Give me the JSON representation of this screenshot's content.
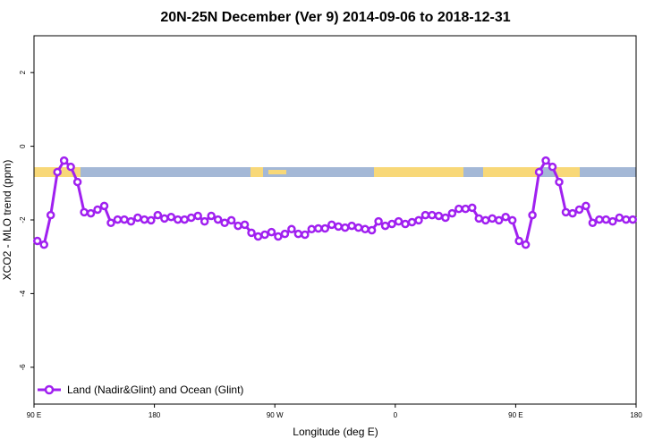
{
  "chart_data": {
    "type": "line",
    "title": "20N-25N December (Ver 9)   2014-09-06 to 2018-12-31",
    "x_label": "Longitude (deg E)",
    "y_label": "XCO2 - MLO trend (ppm)",
    "xlim": [
      90,
      540
    ],
    "ylim": [
      -7,
      3
    ],
    "xticks": [
      {
        "value": 90,
        "label": "90 E"
      },
      180,
      {
        "value": 270,
        "label": "90 W"
      },
      {
        "value": 360,
        "label": "0"
      },
      {
        "value": 450,
        "label": "90 E"
      },
      {
        "value": 540,
        "label": "180"
      }
    ],
    "yticks": [
      2,
      0,
      -2,
      -4,
      -6
    ],
    "legend": "bottom-left",
    "x": [
      92.5,
      97.5,
      102.5,
      107.5,
      112.5,
      117.5,
      122.5,
      127.5,
      132.5,
      137.5,
      142.5,
      147.5,
      152.5,
      157.5,
      162.5,
      167.5,
      172.5,
      177.5,
      182.5,
      187.5,
      192.5,
      197.5,
      202.5,
      207.5,
      212.5,
      217.5,
      222.5,
      227.5,
      232.5,
      237.5,
      242.5,
      247.5,
      252.5,
      257.5,
      262.5,
      267.5,
      272.5,
      277.5,
      282.5,
      287.5,
      292.5,
      297.5,
      302.5,
      307.5,
      312.5,
      317.5,
      322.5,
      327.5,
      332.5,
      337.5,
      342.5,
      347.5,
      352.5,
      357.5,
      362.5,
      367.5,
      372.5,
      377.5,
      382.5,
      387.5,
      392.5,
      397.5,
      402.5,
      407.5,
      412.5,
      417.5,
      422.5,
      427.5,
      432.5,
      437.5,
      442.5,
      447.5,
      452.5,
      457.5,
      462.5,
      467.5,
      472.5,
      477.5,
      482.5,
      487.5,
      492.5,
      497.5,
      502.5,
      507.5,
      512.5,
      517.5,
      522.5,
      527.5,
      532.5,
      537.5
    ],
    "series": [
      {
        "name": "Land (Nadir&Glint) and Ocean (Glint)",
        "color": "#a020f0",
        "values": [
          -2.57,
          -2.67,
          -1.87,
          -0.7,
          -0.39,
          -0.56,
          -0.97,
          -1.79,
          -1.82,
          -1.72,
          -1.62,
          -2.08,
          -1.99,
          -1.99,
          -2.04,
          -1.94,
          -1.99,
          -2.01,
          -1.87,
          -1.96,
          -1.92,
          -1.99,
          -1.99,
          -1.94,
          -1.89,
          -2.04,
          -1.89,
          -1.99,
          -2.08,
          -2.01,
          -2.16,
          -2.13,
          -2.35,
          -2.45,
          -2.4,
          -2.33,
          -2.45,
          -2.38,
          -2.25,
          -2.38,
          -2.4,
          -2.25,
          -2.23,
          -2.23,
          -2.13,
          -2.18,
          -2.21,
          -2.16,
          -2.21,
          -2.25,
          -2.28,
          -2.04,
          -2.16,
          -2.11,
          -2.04,
          -2.11,
          -2.06,
          -2.01,
          -1.87,
          -1.87,
          -1.89,
          -1.94,
          -1.82,
          -1.7,
          -1.7,
          -1.67,
          -1.96,
          -2.01,
          -1.96,
          -2.01,
          -1.92,
          -2.01,
          -2.57,
          -2.67,
          -1.87,
          -0.7,
          -0.39,
          -0.56,
          -0.97,
          -1.79,
          -1.82,
          -1.72,
          -1.62,
          -2.08,
          -1.99,
          -1.99,
          -2.04,
          -1.94,
          -1.99,
          -1.99
        ]
      }
    ]
  }
}
